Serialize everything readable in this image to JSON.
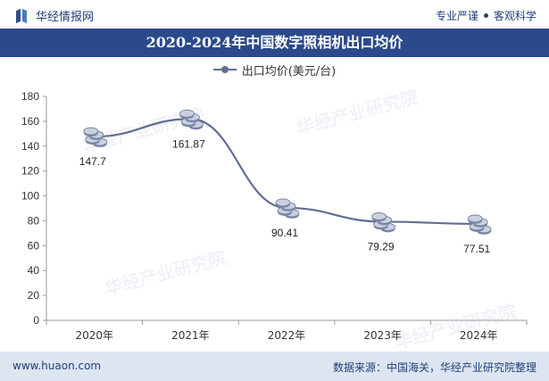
{
  "header": {
    "brand": "华经情报网",
    "tag1": "专业严谨",
    "tag2": "客观科学"
  },
  "title": "2020-2024年中国数字照相机出口均价",
  "footer": {
    "url": "www.huaon.com",
    "source": "数据来源：中国海关，华经产业研究院整理"
  },
  "watermark": "华经产业研究院",
  "colors": {
    "title_bar": "#2b4a8b",
    "line": "#5f6f94",
    "footer_bg": "#dde5f1",
    "brand_text": "#1f3f79"
  },
  "chart_data": {
    "type": "line",
    "categories": [
      "2020年",
      "2021年",
      "2022年",
      "2023年",
      "2024年"
    ],
    "series": [
      {
        "name": "出口均价(美元/台)",
        "values": [
          147.7,
          161.87,
          90.41,
          79.29,
          77.51
        ]
      }
    ],
    "data_labels": [
      "147.7",
      "161.87",
      "90.41",
      "79.29",
      "77.51"
    ],
    "ylim": [
      0,
      180
    ],
    "yticks": [
      0,
      20,
      40,
      60,
      80,
      100,
      120,
      140,
      160,
      180
    ],
    "grid": false,
    "legend": "top-center",
    "smooth": true,
    "marker": "coin-stack"
  }
}
